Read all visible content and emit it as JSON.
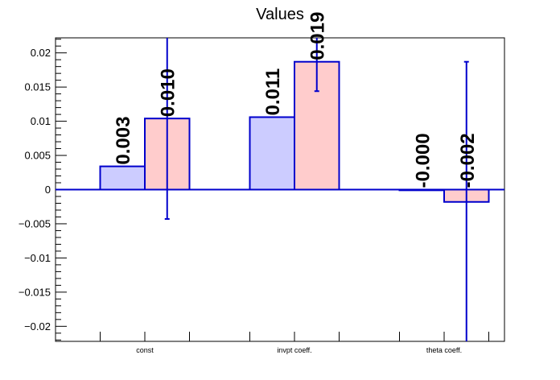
{
  "chart_data": {
    "type": "bar",
    "title": "Values",
    "xlabel": "",
    "ylabel": "",
    "categories": [
      "const",
      "invpt coeff.",
      "theta coeff."
    ],
    "ylim": [
      -0.0222,
      0.0222
    ],
    "yticks": [
      -0.02,
      -0.015,
      -0.01,
      -0.005,
      0,
      0.005,
      0.01,
      0.015,
      0.02
    ],
    "ytick_labels": [
      "−0.02",
      "−0.015",
      "−0.01",
      "−0.005",
      "0",
      "0.005",
      "0.01",
      "0.015",
      "0.02"
    ],
    "series": [
      {
        "values": [
          0.0034,
          0.0106,
          -0.0001
        ],
        "errors": [
          null,
          null,
          null
        ],
        "labels": [
          "0.003",
          "0.011",
          "-0.000"
        ],
        "fill": "#ccccff",
        "stroke": "#0000cc"
      },
      {
        "values": [
          0.0104,
          0.0187,
          -0.0018
        ],
        "errors": [
          0.0147,
          0.0043,
          0.0205
        ],
        "labels": [
          "0.010",
          "0.019",
          "-0.002"
        ],
        "fill": "#ffcccc",
        "stroke": "#0000cc"
      }
    ],
    "grid": false,
    "legend": "none"
  }
}
